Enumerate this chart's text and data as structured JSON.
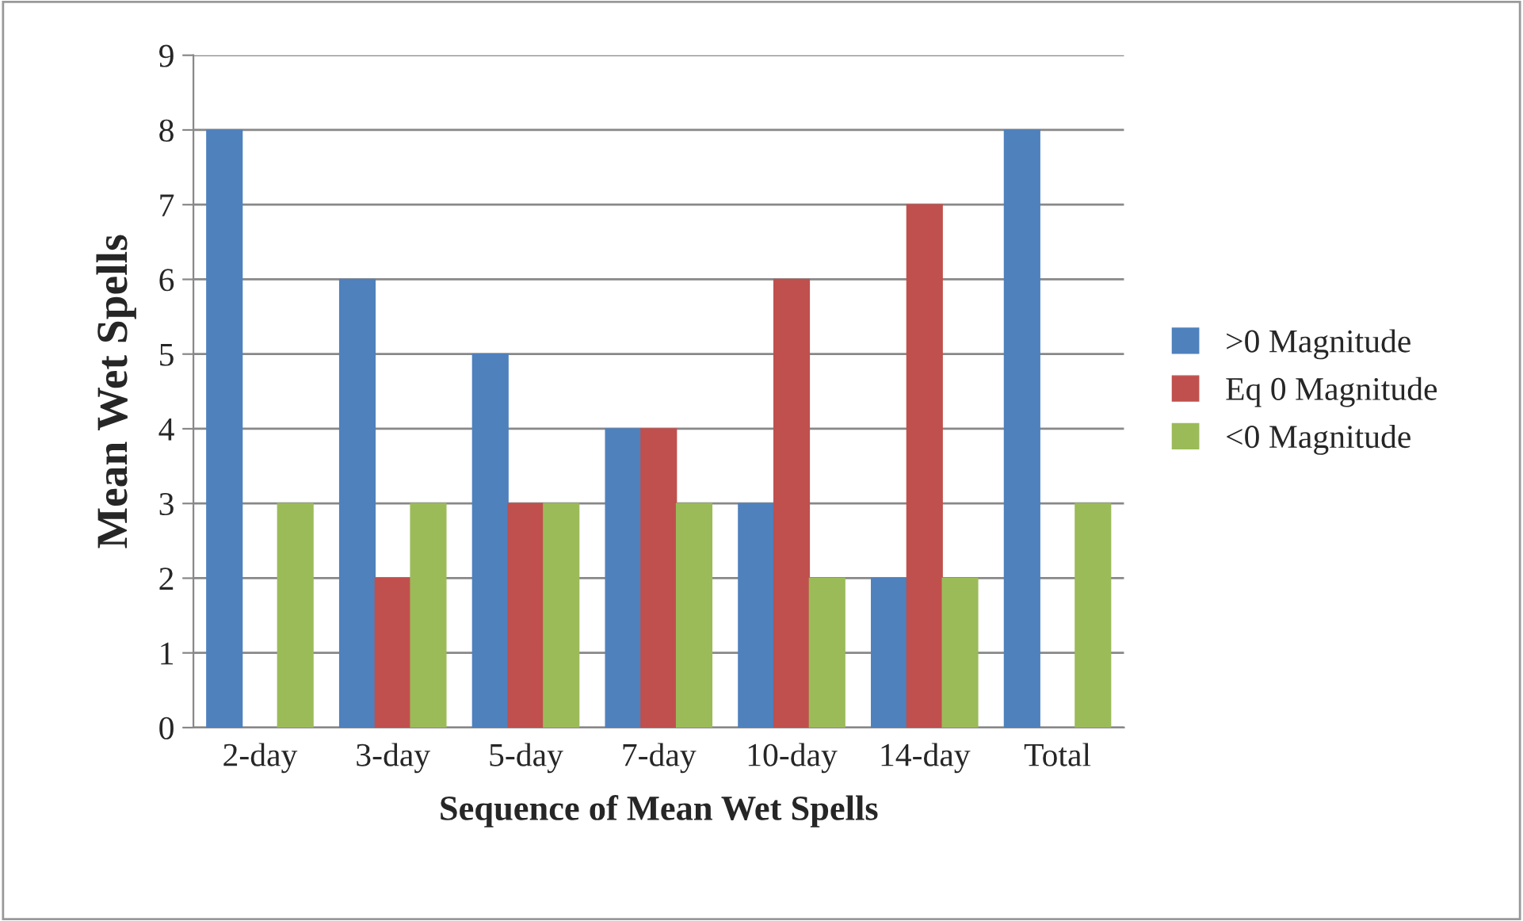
{
  "chart_data": {
    "type": "bar",
    "xlabel": "Sequence of Mean Wet Spells",
    "ylabel": "Mean Wet Spells",
    "categories": [
      "2-day",
      "3-day",
      "5-day",
      "7-day",
      "10-day",
      "14-day",
      "Total"
    ],
    "series": [
      {
        "name": ">0 Magnitude",
        "color": "#4f81bd",
        "values": [
          8,
          6,
          5,
          4,
          3,
          2,
          8
        ]
      },
      {
        "name": "Eq 0 Magnitude",
        "color": "#c0504d",
        "values": [
          null,
          2,
          3,
          4,
          6,
          7,
          null
        ]
      },
      {
        "name": "<0 Magnitude",
        "color": "#9bbb59",
        "values": [
          3,
          3,
          3,
          3,
          2,
          2,
          3
        ]
      }
    ],
    "ylim": [
      0,
      9
    ],
    "yticks": [
      0,
      1,
      2,
      3,
      4,
      5,
      6,
      7,
      8,
      9
    ],
    "grid": "y",
    "legend": "right"
  }
}
